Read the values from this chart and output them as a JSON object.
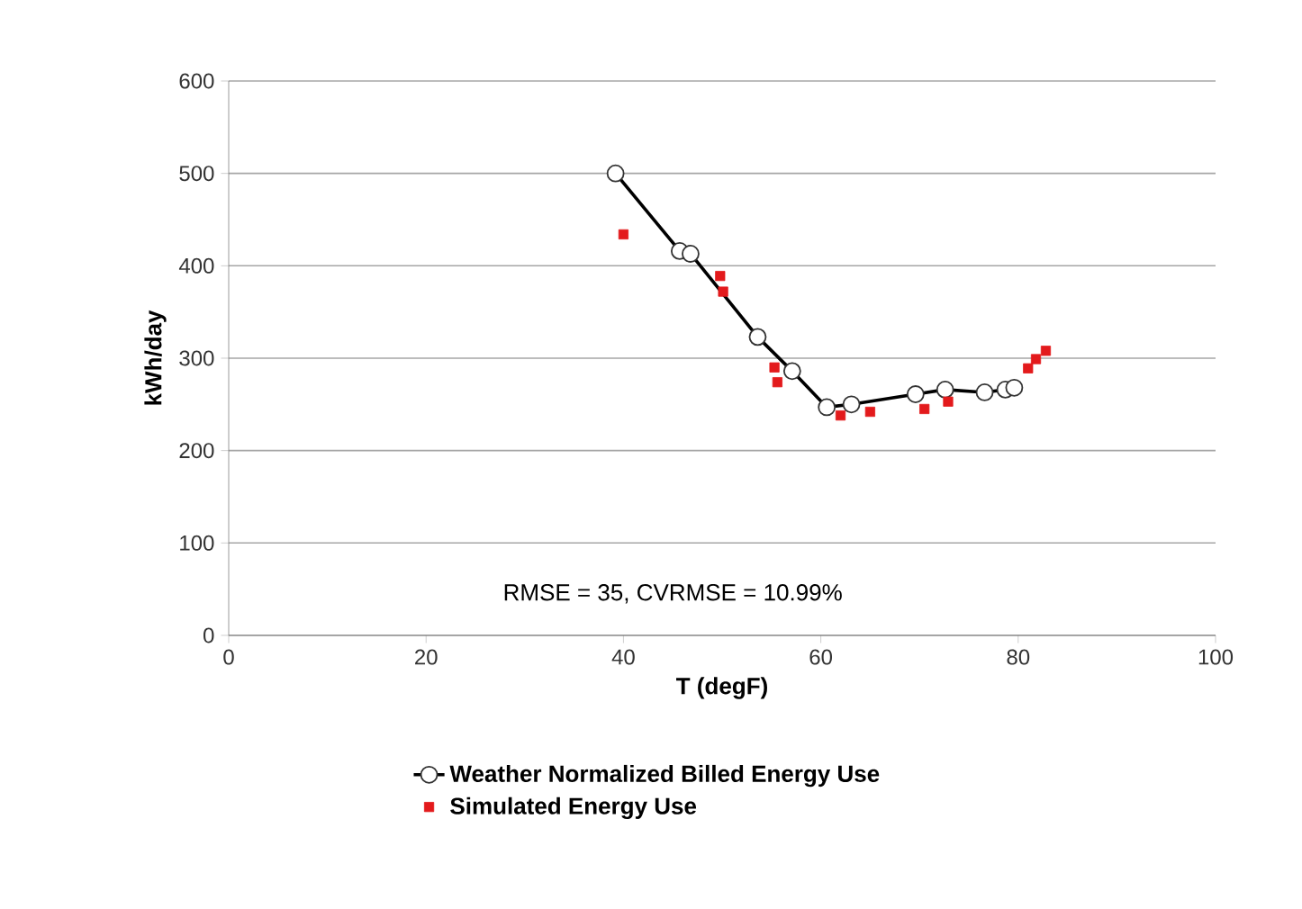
{
  "chart_data": {
    "type": "line",
    "xlabel": "T (degF)",
    "ylabel": "kWh/day",
    "xlim": [
      0,
      100
    ],
    "xticks": [
      0,
      20,
      40,
      60,
      80,
      100
    ],
    "ylim": [
      0,
      600
    ],
    "yticks": [
      0,
      100,
      200,
      300,
      400,
      500,
      600
    ],
    "grid": "y",
    "legend": "bottom",
    "annotations": [
      "RMSE = 35, CVRMSE = 10.99%"
    ],
    "series": [
      {
        "name": "Weather Normalized Billed Energy Use",
        "marker": "circle",
        "line_style": "solid",
        "color": "#000000",
        "x": [
          39.2,
          45.7,
          46.8,
          53.6,
          57.1,
          60.6,
          63.1,
          69.6,
          72.6,
          76.6,
          78.7,
          79.6
        ],
        "values": [
          500,
          416,
          413,
          323,
          286,
          247,
          250,
          261,
          266,
          263,
          266,
          268
        ]
      },
      {
        "name": "Simulated Energy Use",
        "type": "scatter",
        "marker": "square",
        "color": "#e31a1c",
        "x": [
          40.0,
          49.8,
          50.1,
          55.3,
          55.6,
          62.0,
          65.0,
          70.5,
          72.9,
          81.0,
          81.8,
          82.8
        ],
        "values": [
          434,
          389,
          372,
          290,
          274,
          238,
          242,
          245,
          253,
          289,
          299,
          308
        ]
      }
    ]
  }
}
